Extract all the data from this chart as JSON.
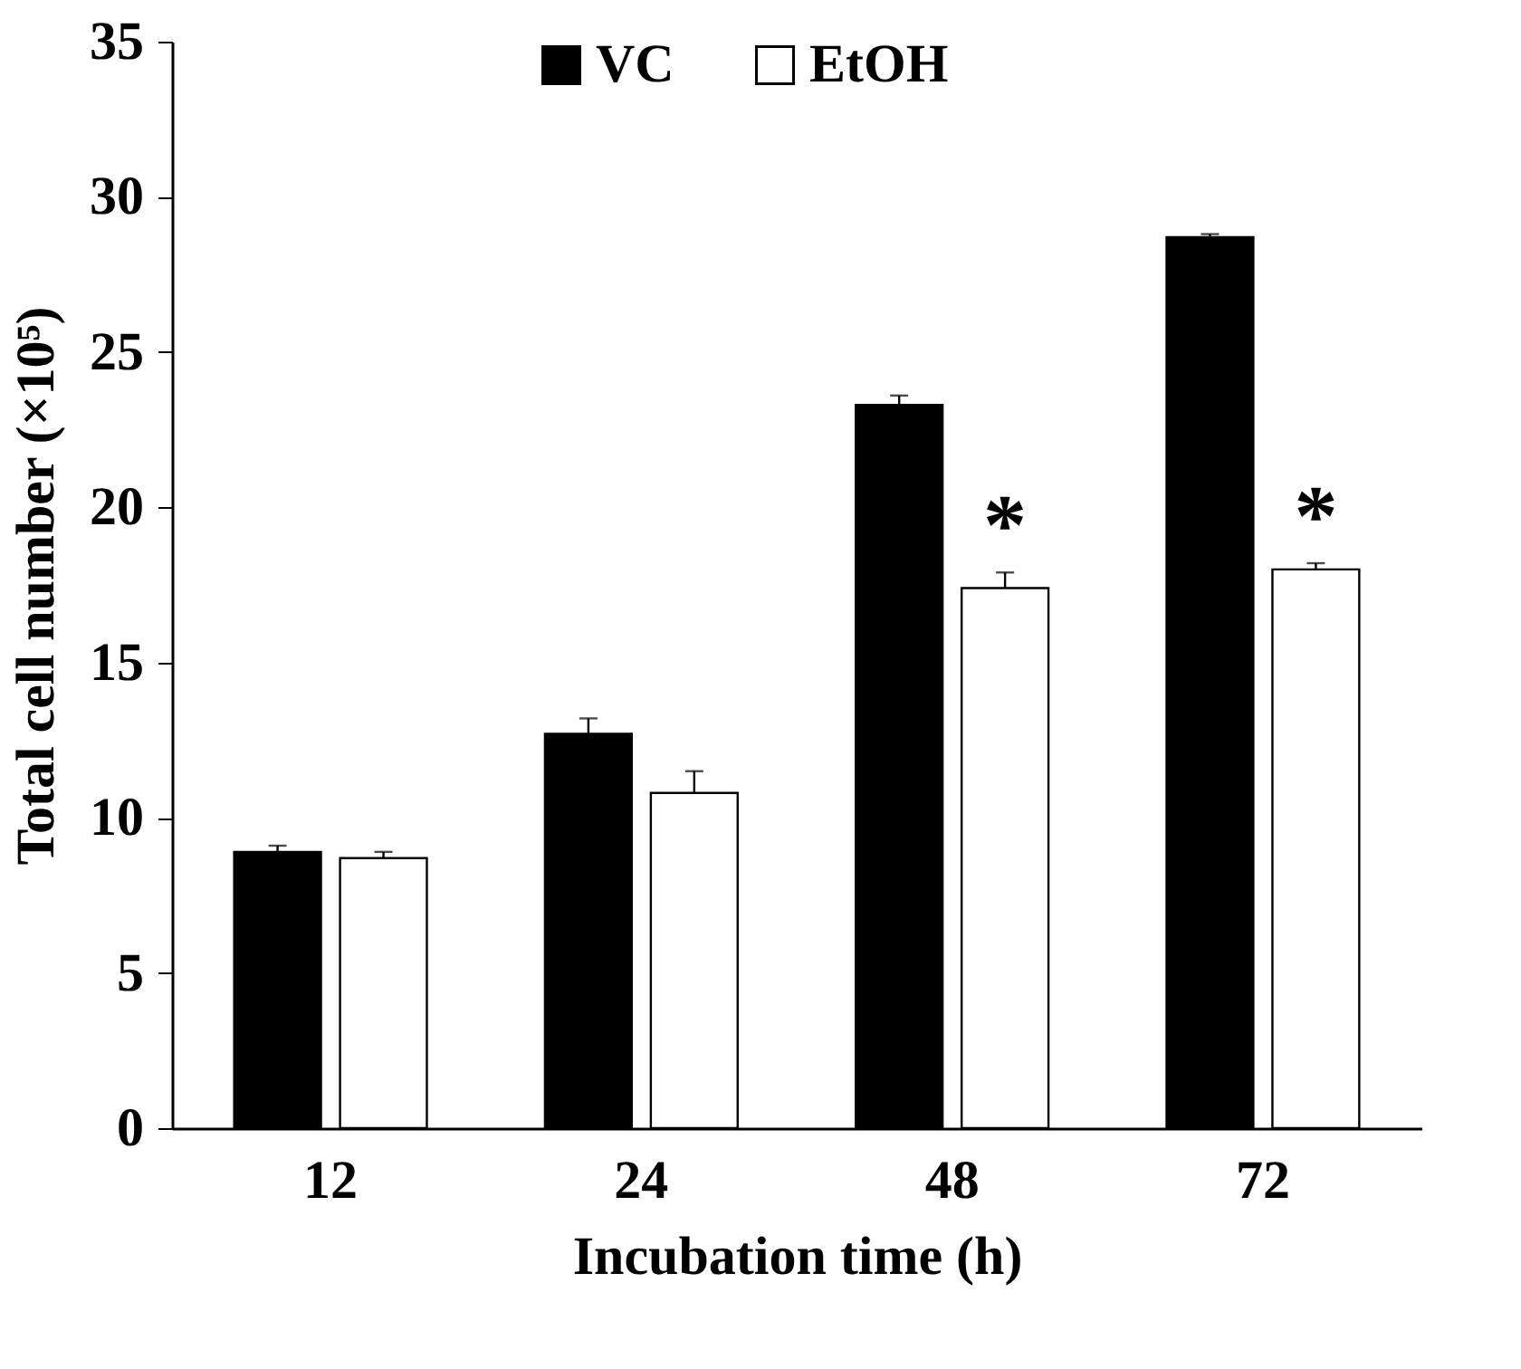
{
  "chart_data": {
    "type": "bar",
    "xlabel": "Incubation time (h)",
    "ylabel": "Total cell number (×10⁵)",
    "categories": [
      "12",
      "24",
      "48",
      "72"
    ],
    "series": [
      {
        "name": "VC",
        "color": "#000000",
        "values": [
          8.9,
          12.7,
          23.3,
          28.7
        ],
        "errors": [
          0.2,
          0.5,
          0.3,
          0.1
        ]
      },
      {
        "name": "EtOH",
        "color": "#ffffff",
        "values": [
          8.7,
          10.8,
          17.4,
          18.0
        ],
        "errors": [
          0.2,
          0.7,
          0.5,
          0.2
        ]
      }
    ],
    "ylim": [
      0,
      35
    ],
    "yticks": [
      0,
      5,
      10,
      15,
      20,
      25,
      30,
      35
    ],
    "legend": "top",
    "grid": false,
    "annotations": [
      "*",
      "*"
    ]
  }
}
